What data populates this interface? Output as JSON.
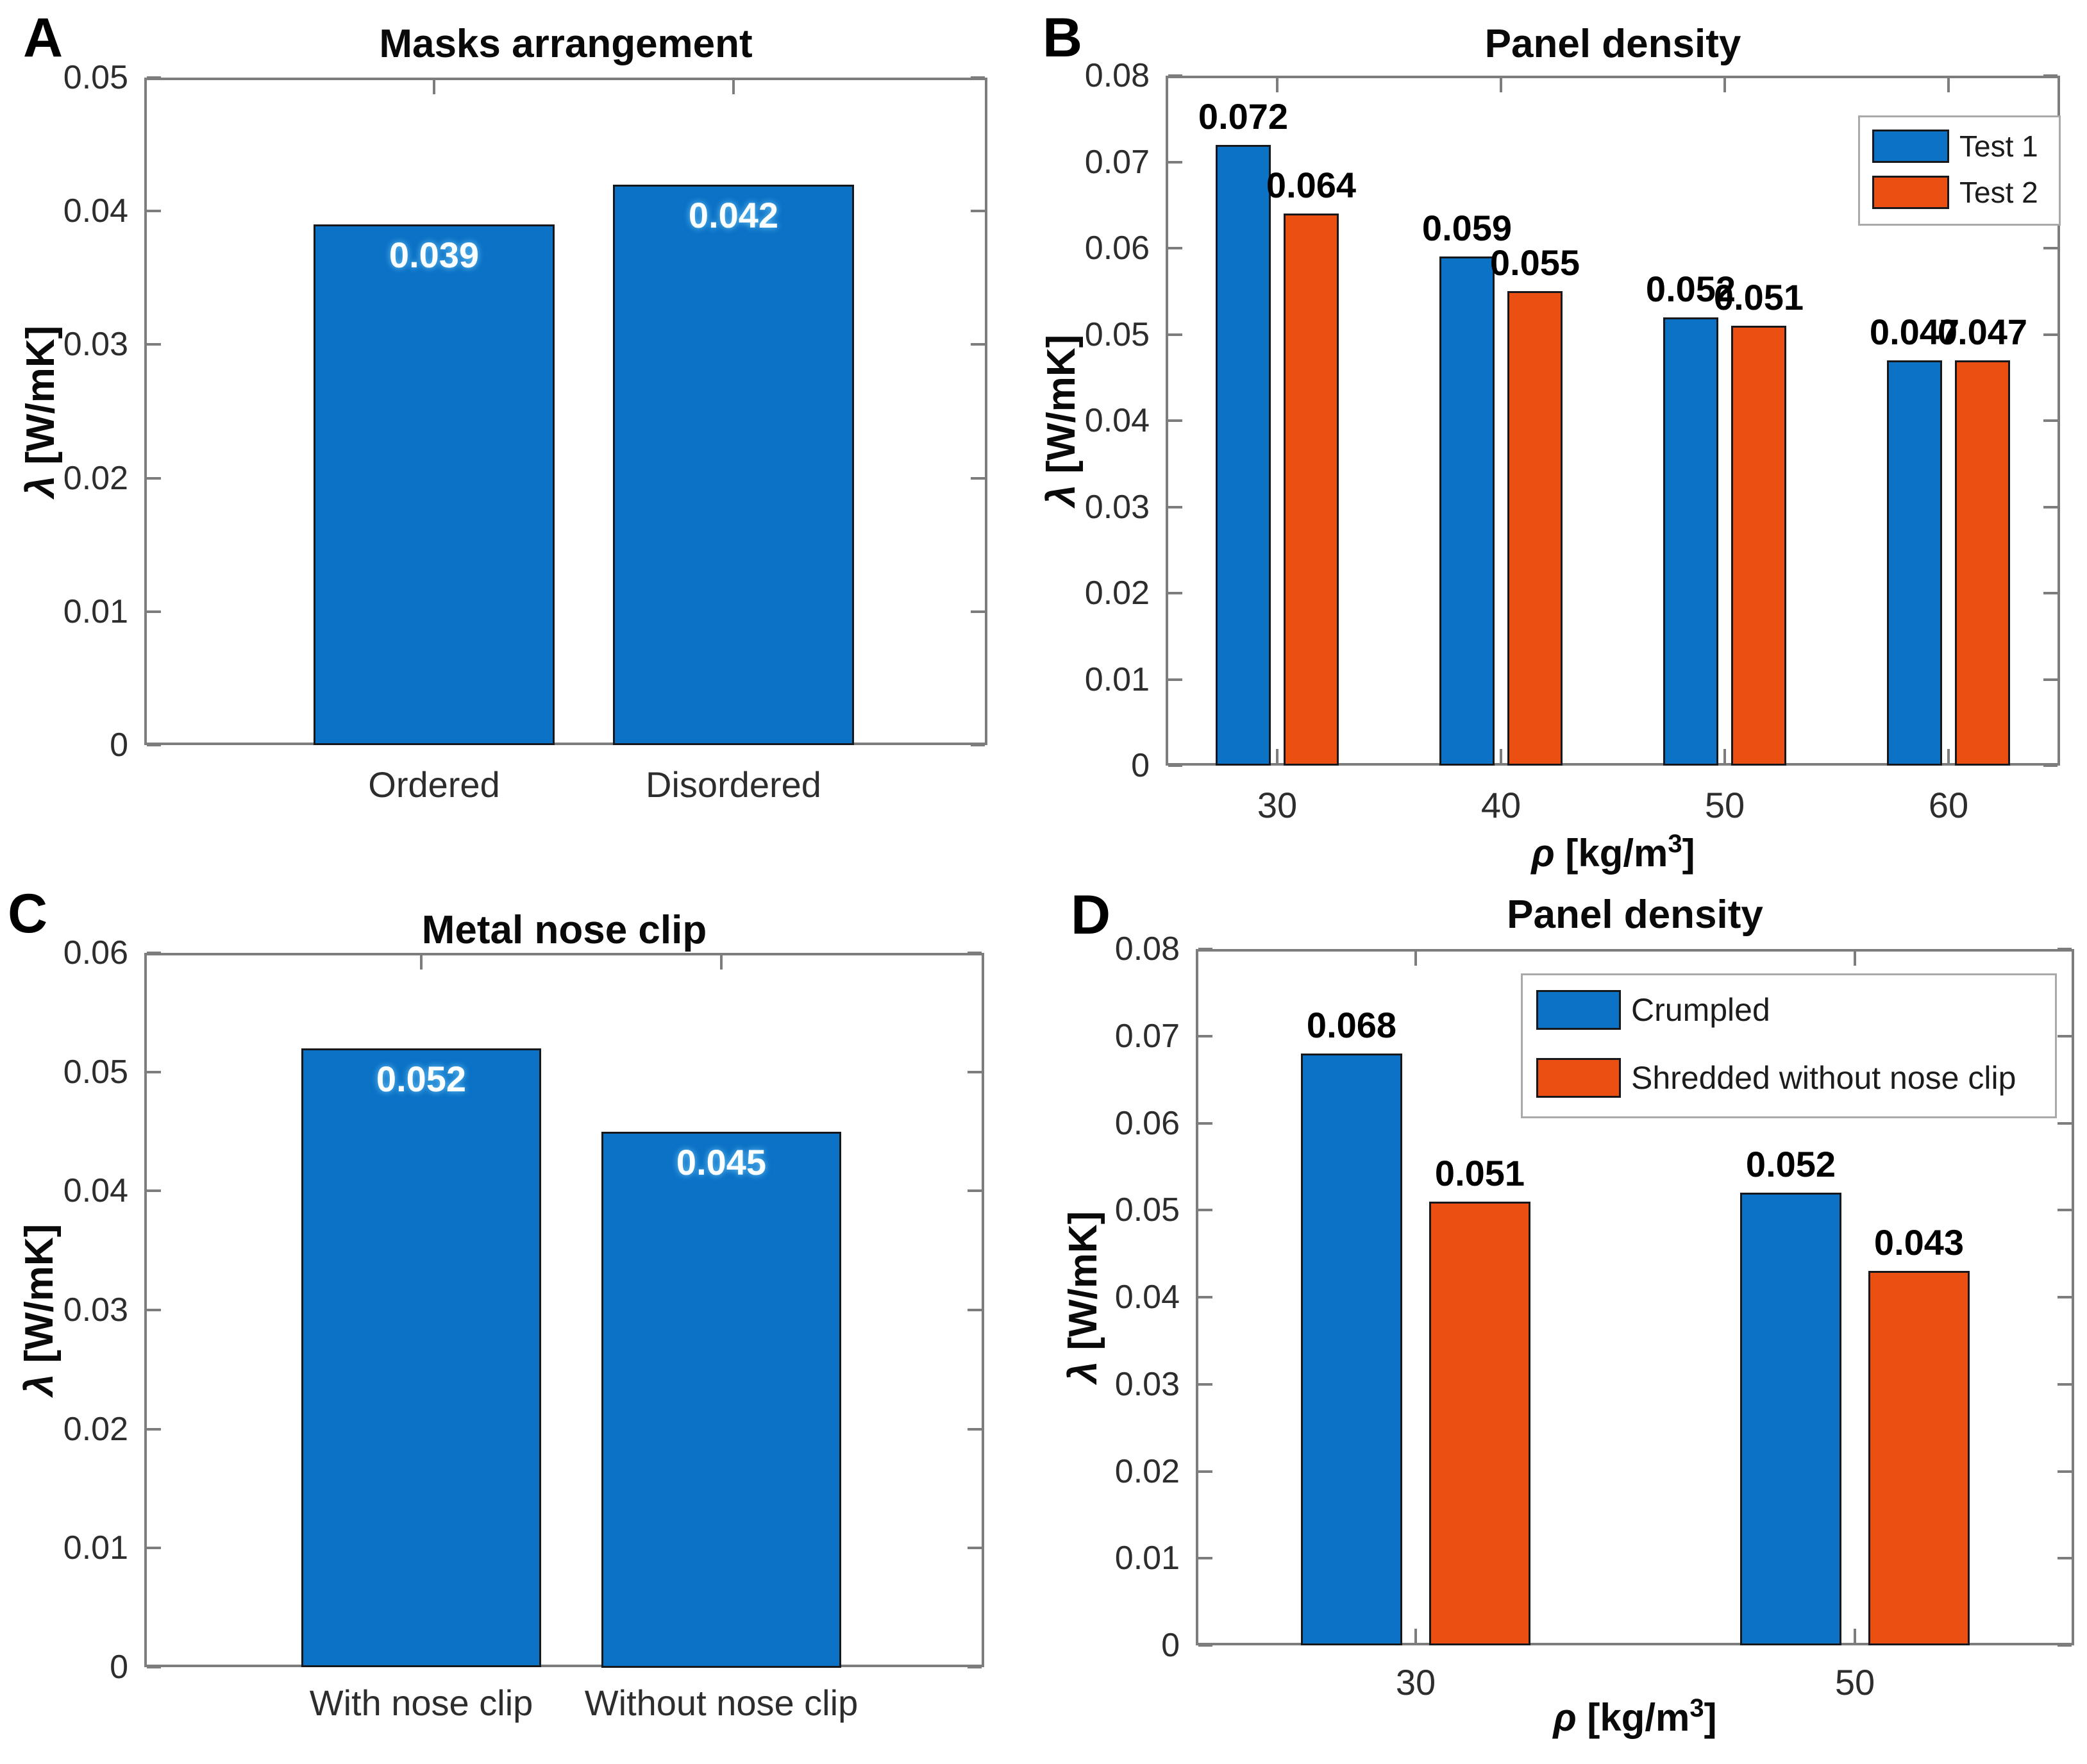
{
  "colors": {
    "bar_blue": "#0b72c6",
    "bar_orange": "#eb4f12",
    "bar_edge": "#16181c",
    "axis_line": "#7d7d7d",
    "tick_text": "#2d2d2d",
    "label_black": "#000000",
    "value_text_light": "#fbfeff"
  },
  "panels": [
    {
      "letter": "A",
      "chart_data": {
        "type": "bar",
        "title": "Masks arrangement",
        "categories": [
          "Ordered",
          "Disordered"
        ],
        "values": [
          0.039,
          0.042
        ],
        "value_labels": [
          "0.039",
          "0.042"
        ],
        "ylabel": {
          "sym": "λ",
          "rest": " [W/mK]"
        },
        "xlabel": null,
        "ylim": [
          0,
          0.05
        ],
        "yticks": [
          "0",
          "0.01",
          "0.02",
          "0.03",
          "0.04",
          "0.05"
        ],
        "bar_color_key": "bar_blue",
        "value_label_position": "inside-top",
        "legend": null,
        "grid": false
      }
    },
    {
      "letter": "B",
      "chart_data": {
        "type": "bar",
        "title": "Panel density",
        "categories": [
          "30",
          "40",
          "50",
          "60"
        ],
        "series": [
          {
            "name": "Test 1",
            "color_key": "bar_blue",
            "values": [
              0.072,
              0.059,
              0.052,
              0.047
            ],
            "value_labels": [
              "0.072",
              "0.059",
              "0.052",
              "0.047"
            ]
          },
          {
            "name": "Test 2",
            "color_key": "bar_orange",
            "values": [
              0.064,
              0.055,
              0.051,
              0.047
            ],
            "value_labels": [
              "0.064",
              "0.055",
              "0.051",
              "0.047"
            ]
          }
        ],
        "ylabel": {
          "sym": "λ",
          "rest": " [W/mK]"
        },
        "xlabel": {
          "sym": "ρ",
          "pre": " [kg/m",
          "sup": "3",
          "post": "]"
        },
        "ylim": [
          0,
          0.08
        ],
        "yticks": [
          "0",
          "0.01",
          "0.02",
          "0.03",
          "0.04",
          "0.05",
          "0.06",
          "0.07",
          "0.08"
        ],
        "value_label_position": "above",
        "legend": {
          "position": "top-right"
        },
        "grid": false
      }
    },
    {
      "letter": "C",
      "chart_data": {
        "type": "bar",
        "title": "Metal nose clip",
        "categories": [
          "With nose clip",
          "Without nose clip"
        ],
        "values": [
          0.052,
          0.045
        ],
        "value_labels": [
          "0.052",
          "0.045"
        ],
        "ylabel": {
          "sym": "λ",
          "rest": " [W/mK]"
        },
        "xlabel": null,
        "ylim": [
          0,
          0.06
        ],
        "yticks": [
          "0",
          "0.01",
          "0.02",
          "0.03",
          "0.04",
          "0.05",
          "0.06"
        ],
        "bar_color_key": "bar_blue",
        "value_label_position": "inside-top",
        "legend": null,
        "grid": false
      }
    },
    {
      "letter": "D",
      "chart_data": {
        "type": "bar",
        "title": "Panel density",
        "categories": [
          "30",
          "50"
        ],
        "series": [
          {
            "name": "Crumpled",
            "color_key": "bar_blue",
            "values": [
              0.068,
              0.052
            ],
            "value_labels": [
              "0.068",
              "0.052"
            ]
          },
          {
            "name": "Shredded without nose clip",
            "color_key": "bar_orange",
            "values": [
              0.051,
              0.043
            ],
            "value_labels": [
              "0.051",
              "0.043"
            ]
          }
        ],
        "ylabel": {
          "sym": "λ",
          "rest": " [W/mK]"
        },
        "xlabel": {
          "sym": "ρ",
          "pre": " [kg/m",
          "sup": "3",
          "post": "]"
        },
        "ylim": [
          0,
          0.08
        ],
        "yticks": [
          "0",
          "0.01",
          "0.02",
          "0.03",
          "0.04",
          "0.05",
          "0.06",
          "0.07",
          "0.08"
        ],
        "value_label_position": "above",
        "legend": {
          "position": "top-right"
        },
        "grid": false
      }
    }
  ]
}
